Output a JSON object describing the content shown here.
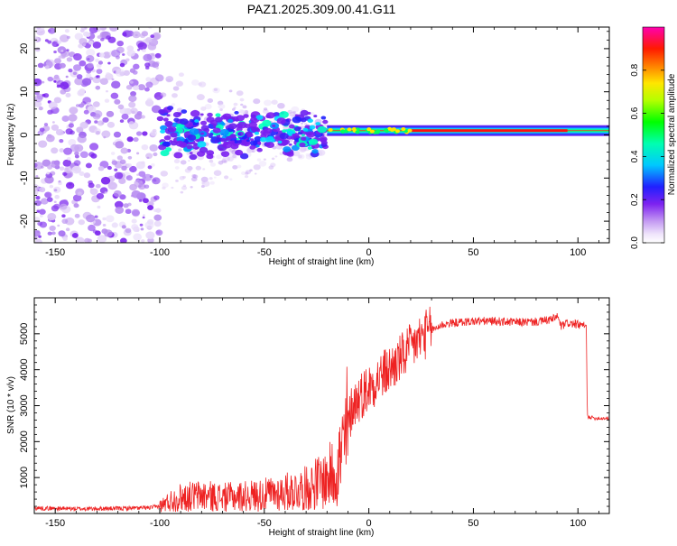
{
  "title": "PAZ1.2025.309.00.41.G11",
  "colors": {
    "snr_line": "#ee2222",
    "axis": "#000000",
    "spec_low": "#7a1ff0",
    "spec_light": "#c8a8f0"
  },
  "chart_data": [
    {
      "type": "heatmap",
      "name": "spectrogram",
      "xlabel": "Height of straight line (km)",
      "ylabel": "Frequency (Hz)",
      "xlim": [
        -160,
        115
      ],
      "ylim": [
        -25,
        25
      ],
      "xticks": [
        -150,
        -100,
        -50,
        0,
        50,
        100
      ],
      "xtick_labels": [
        "-150",
        "-100",
        "-50",
        "0",
        "50",
        "100"
      ],
      "yticks": [
        -20,
        -10,
        0,
        10,
        20
      ],
      "ytick_labels": [
        "-20",
        "-10",
        "0",
        "10",
        "20"
      ],
      "colorbar": {
        "label": "Normalized spectral amplitude",
        "range": [
          0,
          1
        ],
        "ticks": [
          0.0,
          0.2,
          0.4,
          0.6,
          0.8
        ],
        "tick_labels": [
          "0.0",
          "0.2",
          "0.4",
          "0.6",
          "0.8"
        ],
        "colormap": "rainbow (purple-blue-cyan-green-yellow-orange-red-magenta)"
      },
      "features": {
        "noise_region_km": [
          -160,
          -100
        ],
        "noise_freq_spread_hz": [
          -25,
          25
        ],
        "scatter_region_km": [
          -100,
          -20
        ],
        "scatter_freq_spread_hz": [
          -6,
          6
        ],
        "carrier_region_km": [
          -20,
          115
        ],
        "carrier_freq_hz": 1
      }
    },
    {
      "type": "line",
      "name": "snr",
      "xlabel": "Height of straight line (km)",
      "ylabel": "SNR (10 * v/v)",
      "xlim": [
        -160,
        115
      ],
      "ylim": [
        0,
        6000
      ],
      "xticks": [
        -150,
        -100,
        -50,
        0,
        50,
        100
      ],
      "xtick_labels": [
        "-150",
        "-100",
        "-50",
        "0",
        "50",
        "100"
      ],
      "yticks": [
        1000,
        2000,
        3000,
        4000,
        5000
      ],
      "ytick_labels": [
        "1000",
        "2000",
        "3000",
        "4000",
        "5000"
      ],
      "series": [
        {
          "name": "SNR",
          "x": [
            -160,
            -140,
            -120,
            -105,
            -100,
            -95,
            -90,
            -80,
            -70,
            -60,
            -50,
            -40,
            -30,
            -25,
            -20,
            -15,
            -12,
            -10,
            -8,
            -5,
            -2,
            0,
            5,
            10,
            15,
            20,
            25,
            30,
            35,
            40,
            50,
            60,
            70,
            80,
            88,
            90,
            92,
            95,
            100,
            104,
            104.5,
            108,
            115
          ],
          "y": [
            150,
            130,
            140,
            160,
            200,
            350,
            450,
            500,
            450,
            480,
            520,
            600,
            700,
            850,
            950,
            1300,
            1800,
            2400,
            3000,
            3200,
            3400,
            3500,
            3800,
            4000,
            4300,
            4600,
            4900,
            5100,
            5250,
            5300,
            5350,
            5350,
            5320,
            5330,
            5400,
            5500,
            5200,
            5300,
            5250,
            5200,
            2700,
            2650,
            2650
          ]
        }
      ]
    }
  ]
}
